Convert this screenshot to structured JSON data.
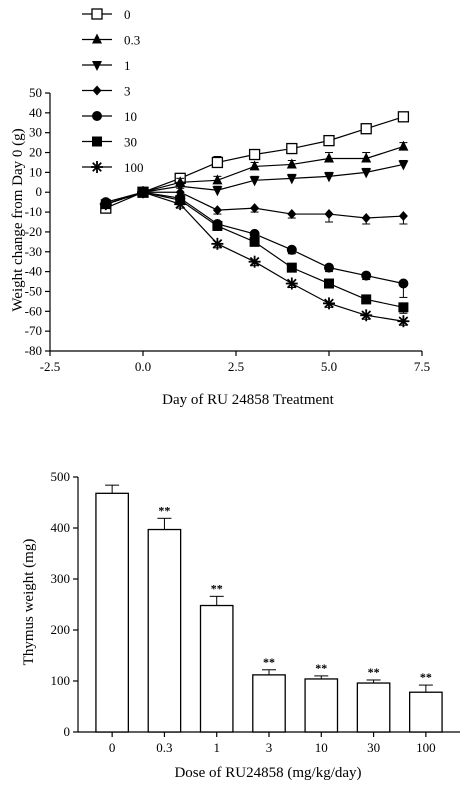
{
  "chart_data": [
    {
      "type": "line",
      "xlabel": "Day of RU 24858 Treatment",
      "ylabel": "Weight change from Day 0 (g)",
      "xlim": [
        -2.5,
        7.5
      ],
      "ylim": [
        -80,
        50
      ],
      "xticks": [
        "-2.5",
        "0.0",
        "2.5",
        "5.0",
        "7.5"
      ],
      "xtick_values": [
        -2.5,
        0,
        2.5,
        5,
        7.5
      ],
      "yticks": [
        "50",
        "40",
        "30",
        "20",
        "10",
        "0",
        "-10",
        "-20",
        "-30",
        "-40",
        "-50",
        "-60",
        "-70",
        "-80"
      ],
      "ytick_values": [
        50,
        40,
        30,
        20,
        10,
        0,
        -10,
        -20,
        -30,
        -40,
        -50,
        -60,
        -70,
        -80
      ],
      "legend_placement": "top-left outside",
      "x": [
        -1,
        0,
        1,
        2,
        3,
        4,
        5,
        6,
        7
      ],
      "series": [
        {
          "name": "0",
          "marker": "open-square",
          "values": [
            -8,
            0,
            7,
            15,
            19,
            22,
            26,
            32,
            38
          ],
          "errors": [
            2,
            0,
            2,
            3,
            2,
            2,
            2,
            2,
            2
          ]
        },
        {
          "name": "0.3",
          "marker": "triangle-up",
          "values": [
            -6,
            0,
            5,
            6,
            13,
            14,
            17,
            17,
            23
          ],
          "errors": [
            2,
            0,
            2,
            2,
            2,
            2,
            3,
            3,
            2
          ]
        },
        {
          "name": "1",
          "marker": "triangle-down",
          "values": [
            -6,
            0,
            3,
            1,
            6,
            7,
            8,
            10,
            14
          ],
          "errors": [
            2,
            0,
            2,
            2,
            2,
            2,
            2,
            2,
            2
          ]
        },
        {
          "name": "3",
          "marker": "diamond",
          "values": [
            -6,
            0,
            0,
            -9,
            -8,
            -11,
            -11,
            -13,
            -12
          ],
          "errors": [
            2,
            0,
            2,
            2,
            2,
            2,
            4,
            3,
            4
          ]
        },
        {
          "name": "10",
          "marker": "circle",
          "values": [
            -5,
            0,
            -3,
            -16,
            -21,
            -29,
            -38,
            -42,
            -46
          ],
          "errors": [
            2,
            0,
            2,
            2,
            2,
            2,
            2,
            2,
            7
          ]
        },
        {
          "name": "30",
          "marker": "filled-square",
          "values": [
            -6,
            0,
            -4,
            -17,
            -25,
            -38,
            -46,
            -54,
            -58
          ],
          "errors": [
            2,
            0,
            2,
            2,
            2,
            2,
            2,
            2,
            3
          ]
        },
        {
          "name": "100",
          "marker": "asterisk",
          "values": [
            -6,
            0,
            -6,
            -26,
            -35,
            -46,
            -56,
            -62,
            -65
          ],
          "errors": [
            2,
            0,
            2,
            2,
            2,
            2,
            2,
            2,
            2
          ]
        }
      ]
    },
    {
      "type": "bar",
      "xlabel": "Dose of RU24858 (mg/kg/day)",
      "ylabel": "Thymus weight (mg)",
      "ylim": [
        0,
        500
      ],
      "yticks": [
        "0",
        "100",
        "200",
        "300",
        "400",
        "500"
      ],
      "ytick_values": [
        0,
        100,
        200,
        300,
        400,
        500
      ],
      "categories": [
        "0",
        "0.3",
        "1",
        "3",
        "10",
        "30",
        "100"
      ],
      "values": [
        468,
        397,
        248,
        112,
        104,
        96,
        78
      ],
      "errors": [
        16,
        22,
        18,
        10,
        6,
        6,
        14
      ],
      "annotations": [
        "",
        "**",
        "**",
        "**",
        "**",
        "**",
        "**"
      ]
    }
  ]
}
